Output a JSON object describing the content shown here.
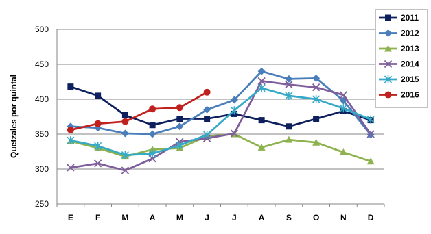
{
  "chart_data": {
    "type": "line",
    "title": "",
    "xlabel": "",
    "ylabel": "Quetzales por quintal",
    "ylim": [
      250,
      500
    ],
    "yticks": [
      250,
      300,
      350,
      400,
      450,
      500
    ],
    "grid": true,
    "legend_position": "right",
    "categories": [
      "E",
      "F",
      "M",
      "A",
      "M",
      "J",
      "J",
      "A",
      "S",
      "O",
      "N",
      "D"
    ],
    "series": [
      {
        "name": "2011",
        "color": "#0d1f5c",
        "marker": "square",
        "values": [
          418,
          405,
          377,
          363,
          372,
          372,
          379,
          370,
          361,
          372,
          383,
          370
        ]
      },
      {
        "name": "2012",
        "color": "#4a7ebb",
        "marker": "diamond",
        "values": [
          361,
          359,
          351,
          350,
          361,
          385,
          399,
          440,
          429,
          430,
          398,
          349
        ]
      },
      {
        "name": "2013",
        "color": "#8db24e",
        "marker": "triangle",
        "values": [
          340,
          330,
          318,
          328,
          330,
          347,
          350,
          331,
          342,
          338,
          324,
          311
        ]
      },
      {
        "name": "2014",
        "color": "#7e5e9b",
        "marker": "x",
        "values": [
          302,
          308,
          298,
          315,
          339,
          344,
          351,
          426,
          421,
          417,
          406,
          350
        ]
      },
      {
        "name": "2015",
        "color": "#35a9c6",
        "marker": "asterisk",
        "values": [
          341,
          333,
          320,
          322,
          334,
          349,
          384,
          416,
          405,
          400,
          387,
          371
        ]
      },
      {
        "name": "2016",
        "color": "#c0201e",
        "marker": "circle",
        "values": [
          356,
          365,
          368,
          386,
          388,
          410,
          null,
          null,
          null,
          null,
          null,
          null
        ]
      }
    ]
  }
}
